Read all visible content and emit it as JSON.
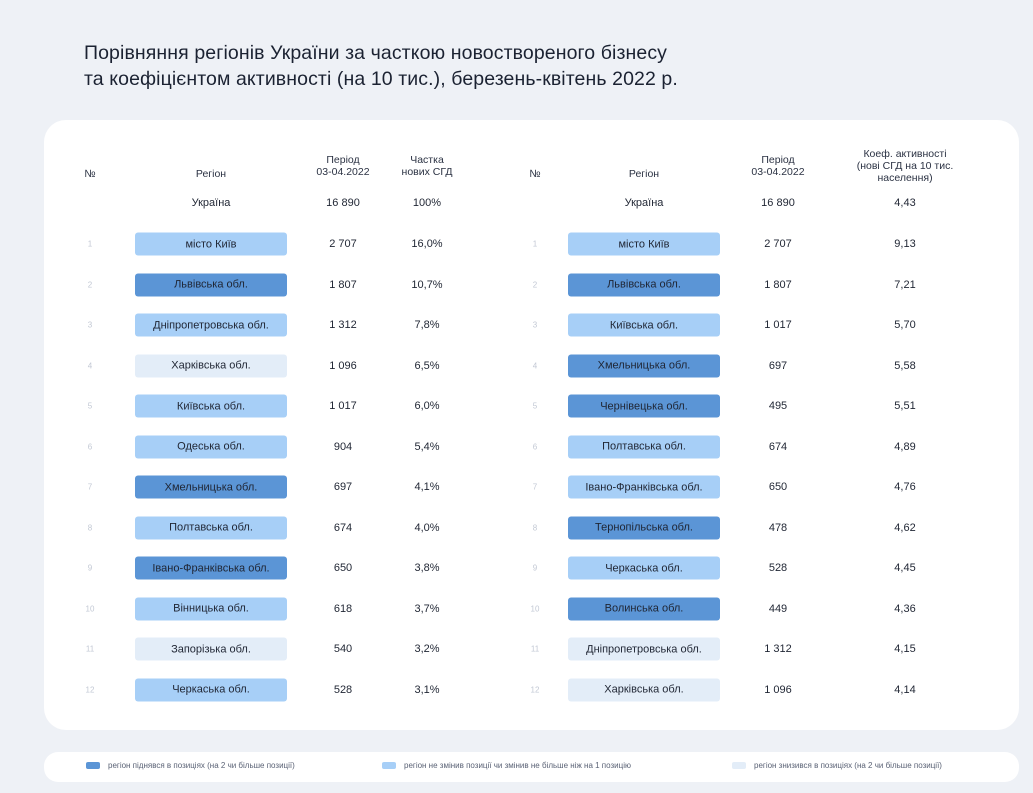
{
  "title": "Порівняння регіонів України за часткою новоствореного бізнесу\nта коефіцієнтом активності (на 10 тис.), березень-квітень 2022 р.",
  "colors": {
    "up": "#5b95d6",
    "same": "#a7cff7",
    "down": "#e3edf8"
  },
  "left_table": {
    "headers": [
      "№",
      "Регіон",
      "Період\n03-04.2022",
      "Частка\nнових СГД"
    ],
    "total": {
      "region": "Україна",
      "period": "16 890",
      "value": "100%"
    },
    "rows": [
      {
        "rank": "1",
        "region": "місто Київ",
        "period": "2 707",
        "value": "16,0%",
        "status": "same"
      },
      {
        "rank": "2",
        "region": "Львівська обл.",
        "period": "1 807",
        "value": "10,7%",
        "status": "up"
      },
      {
        "rank": "3",
        "region": "Дніпропетровська обл.",
        "period": "1 312",
        "value": "7,8%",
        "status": "same"
      },
      {
        "rank": "4",
        "region": "Харківська обл.",
        "period": "1 096",
        "value": "6,5%",
        "status": "down"
      },
      {
        "rank": "5",
        "region": "Київська обл.",
        "period": "1 017",
        "value": "6,0%",
        "status": "same"
      },
      {
        "rank": "6",
        "region": "Одеська обл.",
        "period": "904",
        "value": "5,4%",
        "status": "same"
      },
      {
        "rank": "7",
        "region": "Хмельницька обл.",
        "period": "697",
        "value": "4,1%",
        "status": "up"
      },
      {
        "rank": "8",
        "region": "Полтавська обл.",
        "period": "674",
        "value": "4,0%",
        "status": "same"
      },
      {
        "rank": "9",
        "region": "Івано-Франківська обл.",
        "period": "650",
        "value": "3,8%",
        "status": "up"
      },
      {
        "rank": "10",
        "region": "Вінницька обл.",
        "period": "618",
        "value": "3,7%",
        "status": "same"
      },
      {
        "rank": "11",
        "region": "Запорізька обл.",
        "period": "540",
        "value": "3,2%",
        "status": "down"
      },
      {
        "rank": "12",
        "region": "Черкаська обл.",
        "period": "528",
        "value": "3,1%",
        "status": "same"
      }
    ]
  },
  "right_table": {
    "headers": [
      "№",
      "Регіон",
      "Період\n03-04.2022",
      "Коеф. активності\n(нові СГД на 10 тис.\nнаселення)"
    ],
    "total": {
      "region": "Україна",
      "period": "16 890",
      "value": "4,43"
    },
    "rows": [
      {
        "rank": "1",
        "region": "місто Київ",
        "period": "2 707",
        "value": "9,13",
        "status": "same"
      },
      {
        "rank": "2",
        "region": "Львівська обл.",
        "period": "1 807",
        "value": "7,21",
        "status": "up"
      },
      {
        "rank": "3",
        "region": "Київська обл.",
        "period": "1 017",
        "value": "5,70",
        "status": "same"
      },
      {
        "rank": "4",
        "region": "Хмельницька обл.",
        "period": "697",
        "value": "5,58",
        "status": "up"
      },
      {
        "rank": "5",
        "region": "Чернівецька обл.",
        "period": "495",
        "value": "5,51",
        "status": "up"
      },
      {
        "rank": "6",
        "region": "Полтавська обл.",
        "period": "674",
        "value": "4,89",
        "status": "same"
      },
      {
        "rank": "7",
        "region": "Івано-Франківська обл.",
        "period": "650",
        "value": "4,76",
        "status": "same"
      },
      {
        "rank": "8",
        "region": "Тернопільська обл.",
        "period": "478",
        "value": "4,62",
        "status": "up"
      },
      {
        "rank": "9",
        "region": "Черкаська обл.",
        "period": "528",
        "value": "4,45",
        "status": "same"
      },
      {
        "rank": "10",
        "region": "Волинська обл.",
        "period": "449",
        "value": "4,36",
        "status": "up"
      },
      {
        "rank": "11",
        "region": "Дніпропетровська обл.",
        "period": "1 312",
        "value": "4,15",
        "status": "down"
      },
      {
        "rank": "12",
        "region": "Харківська обл.",
        "period": "1 096",
        "value": "4,14",
        "status": "down"
      }
    ]
  },
  "legend": [
    {
      "status": "up",
      "label": "регіон піднявся в позиціях (на 2 чи більше позиції)"
    },
    {
      "status": "same",
      "label": "регіон не змінив позиції чи змінив не більше ніж на 1 позицію"
    },
    {
      "status": "down",
      "label": "регіон знизився в позиціях (на 2 чи більше позиції)"
    }
  ]
}
